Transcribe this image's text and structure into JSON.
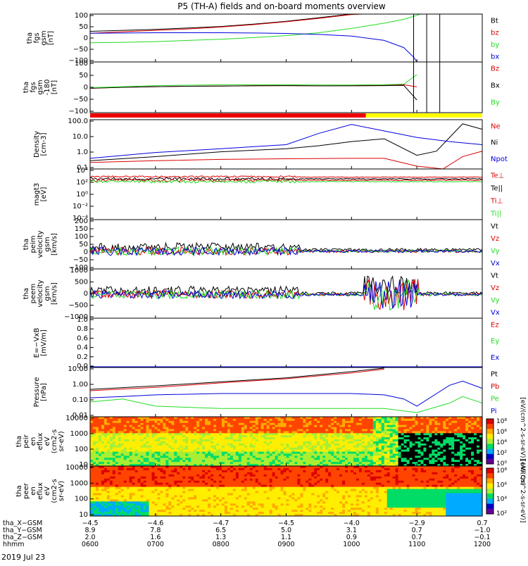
{
  "title": "P5 (TH-A) fields and on-board moments overview",
  "date_label": "2019 Jul 23",
  "colors": {
    "black": "#000000",
    "red": "#dd0000",
    "green": "#22dd22",
    "blue": "#0000dd",
    "yellow": "#ffff00",
    "bar_red": "#ee0000"
  },
  "chart_data": [
    {
      "type": "line",
      "id": "fgs_gsm",
      "ylabel": [
        "tha",
        "fgs",
        "gsm",
        "[nT]"
      ],
      "yticks": [
        "100",
        "50",
        "0",
        "−50",
        "−100"
      ],
      "ylim": [
        -100,
        100
      ],
      "series": [
        {
          "name": "Bt",
          "color": "#000000",
          "x": [
            6.0,
            6.5,
            7.0,
            7.5,
            8.0,
            8.5,
            9.0,
            9.5,
            10.0,
            10.17
          ],
          "y": [
            28,
            32,
            36,
            42,
            48,
            58,
            70,
            85,
            100,
            108
          ]
        },
        {
          "name": "bz",
          "color": "#dd0000",
          "x": [
            6.0,
            6.5,
            7.0,
            7.5,
            8.0,
            8.5,
            9.0,
            9.5,
            10.0,
            10.17
          ],
          "y": [
            20,
            26,
            32,
            38,
            46,
            56,
            68,
            82,
            98,
            106
          ]
        },
        {
          "name": "by",
          "color": "#22dd22",
          "x": [
            6.0,
            6.5,
            7.0,
            7.5,
            8.0,
            8.5,
            9.0,
            9.5,
            10.0,
            10.5,
            10.8,
            11.0,
            11.05
          ],
          "y": [
            -20,
            -18,
            -15,
            -10,
            -5,
            2,
            10,
            22,
            40,
            62,
            78,
            95,
            102
          ]
        },
        {
          "name": "bx",
          "color": "#0000dd",
          "x": [
            6.0,
            6.5,
            7.0,
            7.5,
            8.0,
            8.5,
            9.0,
            9.5,
            10.0,
            10.5,
            10.8,
            10.95,
            11.0
          ],
          "y": [
            20,
            21,
            22,
            22,
            22,
            21,
            19,
            15,
            8,
            -10,
            -40,
            -80,
            -100
          ]
        }
      ]
    },
    {
      "type": "line",
      "id": "fgs_gse_lmn",
      "ylabel": [
        "tha",
        "fgs",
        "gsm",
        "-180",
        "[nT]"
      ],
      "yticks": [
        "100",
        "50",
        "0",
        "−50",
        "−100"
      ],
      "ylim": [
        -120,
        120
      ],
      "series": [
        {
          "name": "Bz",
          "color": "#dd0000",
          "x": [
            6.0,
            6.5,
            7.0,
            7.5,
            8.0,
            8.5,
            9.0,
            9.5,
            10.0,
            10.5,
            10.8,
            11.0
          ],
          "y": [
            -5,
            0,
            3,
            5,
            6,
            8,
            8,
            7,
            8,
            10,
            12,
            2
          ]
        },
        {
          "name": "Bx",
          "color": "#000000",
          "x": [
            6.0,
            6.5,
            7.0,
            7.5,
            8.0,
            8.5,
            9.0,
            9.5,
            10.0,
            10.5,
            10.8,
            11.0
          ],
          "y": [
            -4,
            0,
            3,
            5,
            6,
            7,
            8,
            7,
            7,
            8,
            9,
            -60
          ]
        },
        {
          "name": "By",
          "color": "#22dd22",
          "x": [
            6.0,
            6.5,
            7.0,
            7.5,
            8.0,
            8.5,
            9.0,
            9.5,
            10.0,
            10.5,
            10.8,
            11.0
          ],
          "y": [
            -2,
            3,
            8,
            10,
            12,
            12,
            12,
            11,
            11,
            12,
            15,
            60
          ]
        }
      ]
    },
    {
      "type": "line",
      "id": "density",
      "ylabel": [
        "Density",
        "[cm-3]"
      ],
      "yticks": [
        "100.0",
        "10.0",
        "1.0",
        "0.1"
      ],
      "yscale": "log",
      "ylim": [
        0.05,
        200
      ],
      "series": [
        {
          "name": "Ne",
          "color": "#dd0000",
          "x": [
            6.0,
            7.0,
            8.0,
            9.0,
            10.0,
            10.5,
            11.0,
            11.4,
            11.7,
            12.0
          ],
          "y": [
            0.15,
            0.2,
            0.25,
            0.28,
            0.3,
            0.3,
            0.08,
            0.05,
            0.4,
            1.0
          ]
        },
        {
          "name": "Ni",
          "color": "#000000",
          "x": [
            6.0,
            7.0,
            8.0,
            9.0,
            9.5,
            10.0,
            10.5,
            11.0,
            11.3,
            11.7,
            12.0
          ],
          "y": [
            0.2,
            0.4,
            0.9,
            1.5,
            2.5,
            5,
            8,
            0.5,
            1,
            100,
            40
          ]
        },
        {
          "name": "Npot",
          "color": "#0000dd",
          "x": [
            6.0,
            7.0,
            8.0,
            9.0,
            9.5,
            10.0,
            10.5,
            11.0,
            11.5,
            12.0
          ],
          "y": [
            0.3,
            0.8,
            1.5,
            3,
            20,
            90,
            30,
            10,
            5,
            3
          ]
        }
      ]
    },
    {
      "type": "line",
      "id": "temperature",
      "ylabel": [
        "magt3",
        "[eV]"
      ],
      "yticks": [
        "10⁴",
        "10²",
        "10⁰",
        "10⁻²",
        "10⁻⁴"
      ],
      "series": [
        {
          "name": "Te⊥",
          "color": "#dd0000"
        },
        {
          "name": "Te||",
          "color": "#000000"
        },
        {
          "name": "Ti⊥",
          "color": "#dd0000"
        },
        {
          "name": "Ti||",
          "color": "#22dd22"
        }
      ]
    },
    {
      "type": "line",
      "id": "peim_velocity",
      "ylabel": [
        "tha",
        "peim",
        "velocity",
        "gsm",
        "[km/s]"
      ],
      "yticks": [
        "200",
        "150",
        "100",
        "50",
        "0",
        "−50",
        "−100"
      ],
      "ylim": [
        -100,
        200
      ],
      "series": [
        {
          "name": "Vt",
          "color": "#000000"
        },
        {
          "name": "Vz",
          "color": "#dd0000"
        },
        {
          "name": "Vy",
          "color": "#22dd22"
        },
        {
          "name": "Vx",
          "color": "#0000dd"
        }
      ]
    },
    {
      "type": "line",
      "id": "peem_velocity",
      "ylabel": [
        "tha",
        "peem",
        "velocity",
        "gsm",
        "[km/s]"
      ],
      "yticks": [
        "1000",
        "500",
        "0",
        "−500",
        "−1000"
      ],
      "ylim": [
        -1000,
        1000
      ],
      "series": [
        {
          "name": "Vt",
          "color": "#000000"
        },
        {
          "name": "Vz",
          "color": "#dd0000"
        },
        {
          "name": "Vy",
          "color": "#22dd22"
        },
        {
          "name": "Vx",
          "color": "#0000dd"
        }
      ]
    },
    {
      "type": "line",
      "id": "efield",
      "ylabel": [
        "E=−VxB",
        "[mV/m]"
      ],
      "yticks": [
        "1.0",
        "0.8",
        "0.6",
        "0.4",
        "0.2",
        "0.0"
      ],
      "ylim": [
        0,
        1
      ],
      "series": [
        {
          "name": "Ez",
          "color": "#dd0000"
        },
        {
          "name": "Ey",
          "color": "#22dd22"
        },
        {
          "name": "Ex",
          "color": "#0000dd"
        }
      ]
    },
    {
      "type": "line",
      "id": "pressure",
      "ylabel": [
        "Pressure",
        "[nPa]"
      ],
      "yticks": [
        "10.00",
        "1.00",
        "0.10",
        "0.01"
      ],
      "yscale": "log",
      "ylim": [
        0.005,
        20
      ],
      "series": [
        {
          "name": "Pt",
          "color": "#000000",
          "x": [
            6.0,
            7.0,
            8.0,
            9.0,
            10.0,
            10.5
          ],
          "y": [
            0.5,
            0.9,
            1.8,
            3.5,
            10,
            18
          ]
        },
        {
          "name": "Pb",
          "color": "#dd0000",
          "x": [
            6.0,
            7.0,
            8.0,
            9.0,
            10.0,
            10.5
          ],
          "y": [
            0.4,
            0.7,
            1.5,
            3,
            8,
            15
          ]
        },
        {
          "name": "Pe",
          "color": "#22dd22",
          "x": [
            6.0,
            6.5,
            7.0,
            8.0,
            9.0,
            10.0,
            10.5,
            11.0,
            11.5,
            11.7,
            12.0
          ],
          "y": [
            0.06,
            0.1,
            0.03,
            0.02,
            0.02,
            0.02,
            0.02,
            0.01,
            0.05,
            0.15,
            0.05
          ]
        },
        {
          "name": "Pi",
          "color": "#0000dd",
          "x": [
            6.0,
            6.5,
            7.0,
            8.0,
            9.0,
            10.0,
            10.5,
            10.8,
            11.0,
            11.5,
            11.7,
            12.0
          ],
          "y": [
            0.12,
            0.15,
            0.2,
            0.25,
            0.25,
            0.25,
            0.2,
            0.1,
            0.03,
            1.0,
            2.0,
            0.6
          ]
        }
      ]
    },
    {
      "type": "heatmap",
      "id": "peir_eflux",
      "ylabel": [
        "tha",
        "peir",
        "en",
        "eflux",
        "eV",
        "(cm2-s",
        "sr-eV)"
      ],
      "yticks": [
        "10000",
        "1000",
        "100",
        "10"
      ],
      "colorbar_label": "[eV/(cm^2-s-sr-eV)] (All Qs)"
    },
    {
      "type": "heatmap",
      "id": "peer_eflux",
      "ylabel": [
        "tha",
        "peer",
        "en",
        "eflux",
        "eV",
        "(cm2-s",
        "sr-eV)"
      ],
      "yticks": [
        "10000",
        "1000",
        "100",
        "10"
      ],
      "colorbar_label": "[eV/(cm^2-s-sr-eV)]"
    }
  ],
  "colorbar_ticks": [
    "10⁸",
    "10⁶",
    "10⁴",
    "10²",
    "10⁰"
  ],
  "colorbar2_ticks": [
    "10⁸",
    "10⁶",
    "10⁴",
    "10²"
  ],
  "xaxis": {
    "rows": [
      {
        "label": "tha_X−GSM",
        "values": [
          "−4.5",
          "−4.6",
          "−4.7",
          "−4.5",
          "−4.0",
          "−2.9",
          "0.7"
        ]
      },
      {
        "label": "tha_Y−GSM",
        "values": [
          "8.9",
          "7.8",
          "6.5",
          "5.0",
          "3.1",
          "0.7",
          "−1.0"
        ]
      },
      {
        "label": "tha_Z−GSM",
        "values": [
          "2.0",
          "1.6",
          "1.3",
          "1.1",
          "0.9",
          "0.7",
          "−0.1"
        ]
      },
      {
        "label": "hhmm",
        "values": [
          "0600",
          "0700",
          "0800",
          "0900",
          "1000",
          "1100",
          "1200"
        ]
      }
    ],
    "time_hours": [
      6,
      7,
      8,
      9,
      10,
      11,
      12
    ]
  }
}
